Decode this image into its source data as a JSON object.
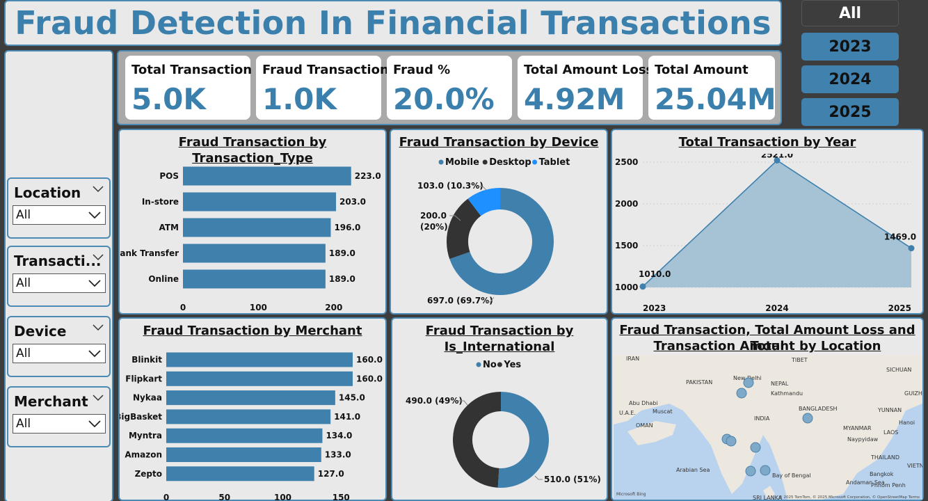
{
  "header": {
    "title": "Fraud Detection In Financial Transactions"
  },
  "year_buttons": [
    "All",
    "2023",
    "2024",
    "2025"
  ],
  "slicers": [
    {
      "label": "Location",
      "value": "All"
    },
    {
      "label": "Transacti...",
      "value": "All"
    },
    {
      "label": "Device",
      "value": "All"
    },
    {
      "label": "Merchant",
      "value": "All"
    }
  ],
  "kpis": [
    {
      "label": "Total Transaction",
      "value": "5.0K"
    },
    {
      "label": "Fraud Transaction",
      "value": "1.0K"
    },
    {
      "label": "Fraud %",
      "value": "20.0%"
    },
    {
      "label": "Total Amount Loss",
      "value": "4.92M"
    },
    {
      "label": "Total Amount",
      "value": "25.04M"
    }
  ],
  "colors": {
    "primary": "#3f80ad",
    "dark": "#333333",
    "light_blue": "#1e90ff",
    "area_fill": "#a6c3d6"
  },
  "chart_data": [
    {
      "type": "bar",
      "title": "Fraud Transaction by Transaction_Type",
      "categories": [
        "POS",
        "In-store",
        "ATM",
        "Bank Transfer",
        "Online"
      ],
      "values": [
        223,
        203,
        196,
        189,
        189
      ],
      "value_labels": [
        "223.0",
        "203.0",
        "196.0",
        "189.0",
        "189.0"
      ],
      "xlim": [
        0,
        250
      ],
      "ticks": [
        "0",
        "100",
        "200"
      ],
      "tick_values": [
        0,
        100,
        200
      ]
    },
    {
      "type": "pie",
      "title": "Fraud Transaction by Device",
      "legend": [
        "Mobile",
        "Desktop",
        "Tablet"
      ],
      "values": [
        697,
        200,
        103
      ],
      "slice_labels": [
        "697.0 (69.7%)",
        "200.0 (20%)",
        "103.0 (10.3%)"
      ],
      "label_lines": [
        [
          "697.0 (69.7%)"
        ],
        [
          "200.0",
          "(20%)"
        ],
        [
          "103.0 (10.3%)"
        ]
      ]
    },
    {
      "type": "area",
      "title": "Total Transaction by Year",
      "x": [
        "2023",
        "2024",
        "2025"
      ],
      "values": [
        1010,
        2521,
        1469
      ],
      "value_labels": [
        "1010.0",
        "2521.0",
        "1469.0"
      ],
      "ylim": [
        1000,
        2550
      ],
      "yticks": [
        "1000",
        "1500",
        "2000",
        "2500"
      ],
      "ytick_values": [
        1000,
        1500,
        2000,
        2500
      ]
    },
    {
      "type": "bar",
      "title": "Fraud Transaction by Merchant",
      "categories": [
        "Blinkit",
        "Flipkart",
        "Nykaa",
        "BigBasket",
        "Myntra",
        "Amazon",
        "Zepto"
      ],
      "values": [
        160,
        160,
        145,
        141,
        134,
        133,
        127
      ],
      "value_labels": [
        "160.0",
        "160.0",
        "145.0",
        "141.0",
        "134.0",
        "133.0",
        "127.0"
      ],
      "xlim": [
        0,
        160
      ],
      "ticks": [
        "0",
        "50",
        "100",
        "150"
      ],
      "tick_values": [
        0,
        50,
        100,
        150
      ]
    },
    {
      "type": "pie",
      "title": "Fraud Transaction by Is_International",
      "title_lines": [
        "Fraud Transaction by",
        "Is_International"
      ],
      "legend": [
        "No",
        "Yes"
      ],
      "values": [
        510,
        490
      ],
      "slice_labels": [
        "510.0 (51%)",
        "490.0 (49%)"
      ]
    }
  ],
  "map": {
    "title_lines": [
      "Fraud Transaction, Total Amount Loss and Total",
      "Transaction Amount by Location"
    ],
    "place_labels": [
      "IRAN",
      "PAKISTAN",
      "New Delhi",
      "NEPAL",
      "Kathmandu",
      "TIBET",
      "SICHUAN",
      "Abu Dhabi",
      "U.A.E.",
      "Muscat",
      "OMAN",
      "INDIA",
      "BANGLADESH",
      "MYANMAR",
      "LAOS",
      "Hanoi",
      "Naypyidaw",
      "THAILAND",
      "VIETN",
      "Bay of Bengal",
      "Bangkok",
      "Arabian Sea",
      "Andaman Sea",
      "Phnom Penh",
      "YUNNAN",
      "GUIZHOU",
      "SRI LANKA"
    ],
    "attribution": "© 2025 TomTom, © 2025 Microsoft Corporation, © OpenStreetMap Terms",
    "bing": "Microsoft Bing"
  }
}
